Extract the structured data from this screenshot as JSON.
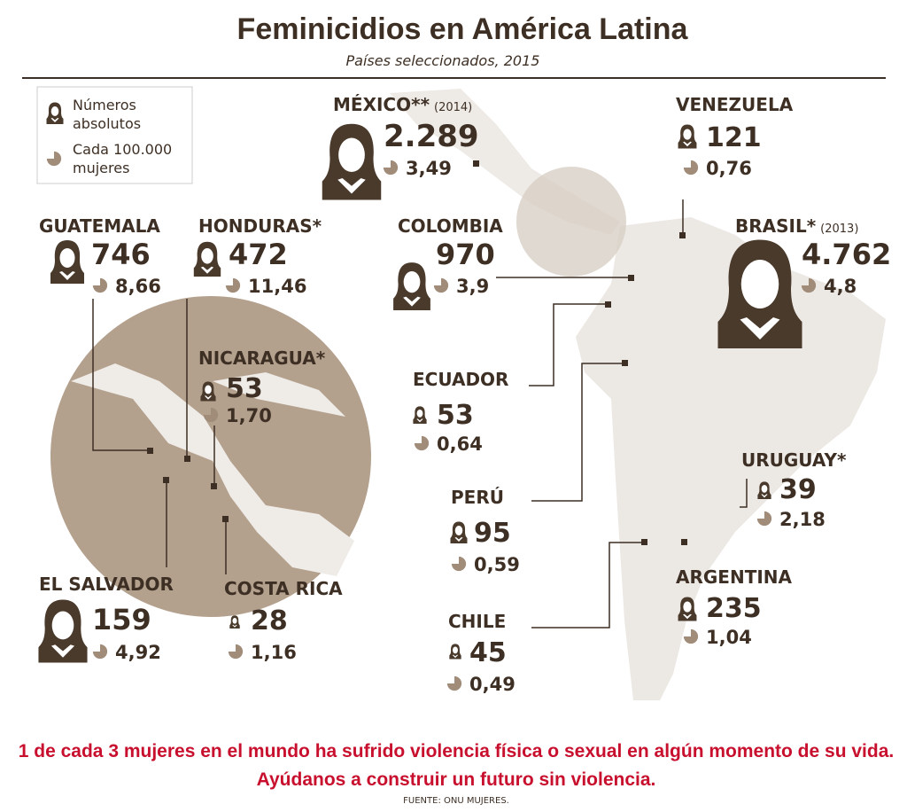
{
  "header": {
    "title": "Feminicidios en América Latina",
    "subtitle": "Países seleccionados, 2015"
  },
  "legend": {
    "absolute": [
      "Números",
      "absolutos"
    ],
    "rate": [
      "Cada 100.000",
      "mujeres"
    ]
  },
  "countries": [
    {
      "name": "MÉXICO**",
      "note": "(2014)",
      "absolute": "2.289",
      "rate": "3,49"
    },
    {
      "name": "VENEZUELA",
      "absolute": "121",
      "rate": "0,76"
    },
    {
      "name": "GUATEMALA",
      "absolute": "746",
      "rate": "8,66"
    },
    {
      "name": "HONDURAS*",
      "absolute": "472",
      "rate": "11,46"
    },
    {
      "name": "COLOMBIA",
      "absolute": "970",
      "rate": "3,9"
    },
    {
      "name": "BRASIL*",
      "note": "(2013)",
      "absolute": "4.762",
      "rate": "4,8"
    },
    {
      "name": "NICARAGUA*",
      "absolute": "53",
      "rate": "1,70"
    },
    {
      "name": "ECUADOR",
      "absolute": "53",
      "rate": "0,64"
    },
    {
      "name": "URUGUAY*",
      "absolute": "39",
      "rate": "2,18"
    },
    {
      "name": "PERÚ",
      "absolute": "95",
      "rate": "0,59"
    },
    {
      "name": "EL SALVADOR",
      "absolute": "159",
      "rate": "4,92"
    },
    {
      "name": "COSTA RICA",
      "absolute": "28",
      "rate": "1,16"
    },
    {
      "name": "ARGENTINA",
      "absolute": "235",
      "rate": "1,04"
    },
    {
      "name": "CHILE",
      "absolute": "45",
      "rate": "0,49"
    }
  ],
  "footer": {
    "message": [
      "1 de cada 3 mujeres en el mundo ha sufrido violencia física o sexual en algún momento de su vida.",
      "Ayúdanos a construir un futuro sin violencia."
    ],
    "source": "FUENTE: ONU MUJERES."
  }
}
